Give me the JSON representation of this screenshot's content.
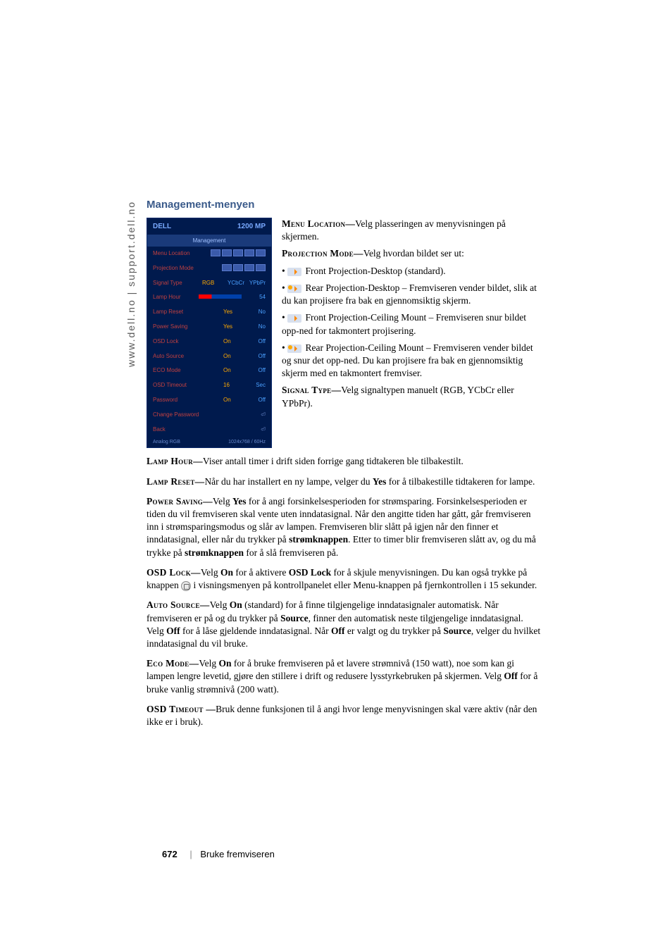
{
  "sidebar": "www.dell.no | support.dell.no",
  "section_title": "Management-menyen",
  "osd": {
    "brand": "DELL",
    "model": "1200 MP",
    "tab": "Management",
    "rows": {
      "menu_location": "Menu Location",
      "projection_mode": "Projection Mode",
      "signal_type": {
        "label": "Signal Type",
        "v1": "RGB",
        "v2": "YCbCr",
        "v3": "YPbPr"
      },
      "lamp_hour": {
        "label": "Lamp Hour",
        "val": "54"
      },
      "lamp_reset": {
        "label": "Lamp Reset",
        "v1": "Yes",
        "v2": "No"
      },
      "power_saving": {
        "label": "Power Saving",
        "v1": "Yes",
        "v2": "No"
      },
      "osd_lock": {
        "label": "OSD Lock",
        "v1": "On",
        "v2": "Off"
      },
      "auto_source": {
        "label": "Auto Source",
        "v1": "On",
        "v2": "Off"
      },
      "eco_mode": {
        "label": "ECO Mode",
        "v1": "On",
        "v2": "Off"
      },
      "osd_timeout": {
        "label": "OSD Timeout",
        "v1": "16",
        "unit": "Sec"
      },
      "password": {
        "label": "Password",
        "v1": "On",
        "v2": "Off"
      },
      "change_password": "Change Password",
      "back": "Back"
    },
    "footer_left": "Analog RGB",
    "footer_right": "1024x768 / 60Hz"
  },
  "right": {
    "menu_location_term": "Menu Location—",
    "menu_location_text": "Velg plasseringen av menyvisningen på skjermen.",
    "projection_mode_term": "Projection Mode—",
    "projection_mode_text": "Velg hvordan bildet ser ut:",
    "fpd": " Front Projection-Desktop (standard).",
    "rpd": " Rear Projection-Desktop – Fremviseren vender bildet, slik at du kan projisere fra bak en gjennomsiktig skjerm.",
    "fpc": " Front Projection-Ceiling Mount – Fremviseren snur bildet opp-ned for takmontert projisering.",
    "rpc": " Rear Projection-Ceiling Mount – Fremviseren vender bildet og snur det opp-ned. Du kan projisere fra bak en gjennomsiktig skjerm med en takmontert fremviser.",
    "signal_type_term": "Signal Type—",
    "signal_type_text": "Velg signaltypen manuelt (RGB, YCbCr eller YPbPr)."
  },
  "body": {
    "lamp_hour_term": "Lamp Hour—",
    "lamp_hour": "Viser antall timer i drift siden forrige gang tidtakeren ble tilbakestilt.",
    "lamp_reset_term": "Lamp Reset—",
    "lamp_reset_a": "Når du har installert en ny lampe, velger du ",
    "yes": "Yes",
    "lamp_reset_b": " for å tilbakestille tidtakeren for lampe.",
    "power_saving_term": "Power Saving—",
    "power_saving_a": "Velg ",
    "power_saving_b": " for å angi forsinkelsesperioden for strømsparing. Forsinkelsesperioden er tiden du vil fremviseren skal vente uten inndatasignal. Når den angitte tiden har gått, går fremviseren inn i strømsparingsmodus og slår av lampen. Fremviseren blir slått på igjen når den finner et inndatasignal, eller når du trykker på ",
    "power_btn": "strømknappen",
    "power_saving_c": ". Etter to timer blir fremviseren slått av, og du må trykke på ",
    "power_saving_d": " for å slå fremviseren på.",
    "osd_lock_term": "OSD Lock—",
    "on": "On",
    "osd_lock_a": "Velg ",
    "osd_lock_b": " for å aktivere ",
    "osd_lock_name": "OSD Lock",
    "osd_lock_c": " for å skjule menyvisningen. Du kan også trykke på knappen ",
    "osd_lock_d": " i visningsmenyen på kontrollpanelet eller Menu-knappen på fjernkontrollen i 15 sekunder.",
    "auto_source_term": "Auto Source—",
    "auto_source_a": "Velg ",
    "auto_source_b": " (standard) for å finne tilgjengelige inndatasignaler automatisk. Når fremviseren er på og du trykker på ",
    "source": "Source",
    "auto_source_c": ", finner den automatisk neste tilgjengelige inndatasignal. Velg ",
    "off": "Off",
    "auto_source_d": " for å låse gjeldende inndatasignal. Når ",
    "auto_source_e": " er valgt og du trykker på ",
    "auto_source_f": " velger du hvilket inndatasignal du vil bruke.",
    "eco_mode_term": "Eco Mode—",
    "eco_mode_a": "Velg ",
    "eco_mode_b": " for å bruke fremviseren på et lavere strømnivå (150 watt), noe som kan gi lampen lengre levetid, gjøre den stillere i drift og redusere lysstyrkebruken på skjermen. Velg ",
    "eco_mode_c": " for å bruke vanlig strømnivå (200 watt).",
    "osd_timeout_term": "OSD Timeout —",
    "osd_timeout": "Bruk denne funksjonen til å angi hvor lenge menyvisningen skal være aktiv (når den ikke er i bruk)."
  },
  "footer": {
    "page": "672",
    "text": "Bruke fremviseren"
  }
}
